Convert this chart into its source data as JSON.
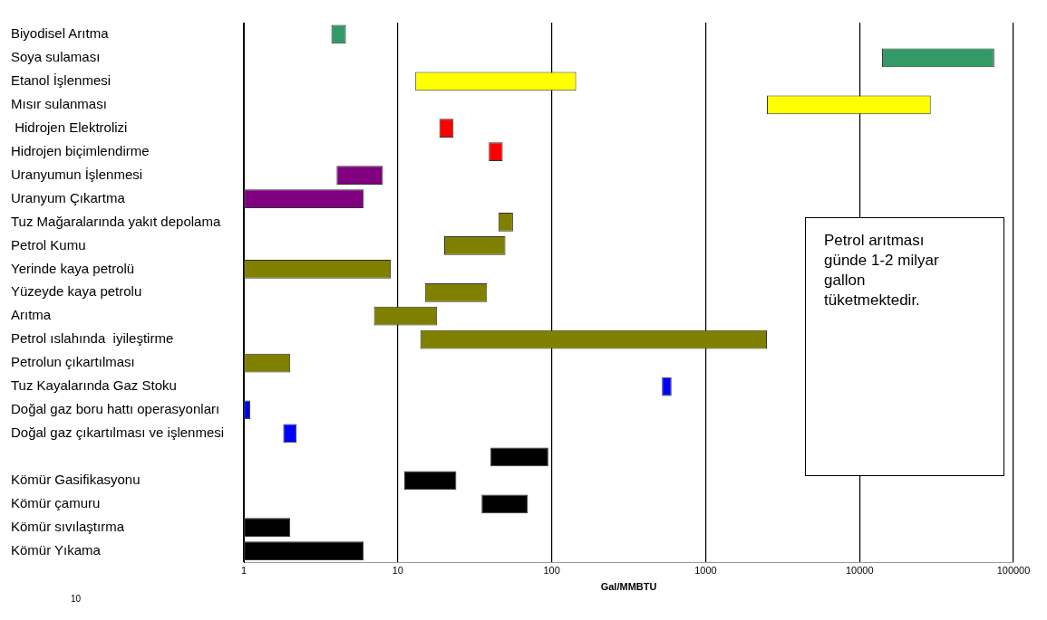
{
  "chart_data": {
    "type": "bar",
    "orientation": "horizontal",
    "log": "x",
    "xlabel": "Gal/MMBTU",
    "categories": [
      "Biyodisel Arıtma",
      "Soya sulaması",
      "Etanol İşlenmesi",
      "Mısır sulanması",
      " Hidrojen Elektrolizi",
      "Hidrojen biçimlendirme",
      "Uranyumun İşlenmesi",
      "Uranyum Çıkartma",
      "Tuz Mağaralarında yakıt depolama",
      "Petrol Kumu",
      "Yerinde kaya petrolü",
      "Yüzeyde kaya petrolu",
      "Arıtma",
      "Petrol ıslahında  iyileştirme",
      "Petrolun çıkartılması",
      "Tuz Kayalarında Gaz Stoku",
      "Doğal gaz boru hattı operasyonları",
      "Doğal gaz çıkartılması ve işlenmesi",
      null,
      "Kömür Gasifikasyonu",
      "Kömür çamuru",
      "Kömür sıvılaştırma",
      "Kömür Yıkama"
    ],
    "base": [
      3.7,
      14000,
      13,
      2500,
      18.6,
      39,
      4,
      1,
      45,
      20,
      1,
      15,
      7,
      14,
      1,
      520,
      1,
      1.8,
      40,
      11,
      35,
      1,
      1
    ],
    "values": [
      0.9,
      61000,
      131,
      26500,
      4.4,
      9,
      4,
      5,
      11,
      30,
      8,
      23,
      11,
      2486,
      1,
      80,
      0.1,
      0.4,
      55,
      13,
      35,
      1,
      5
    ],
    "colors": [
      "#339966",
      "#339966",
      "#ffff00",
      "#ffff00",
      "#ff0000",
      "#ff0000",
      "#800080",
      "#800080",
      "#808000",
      "#808000",
      "#808000",
      "#808000",
      "#808000",
      "#808000",
      "#808000",
      "#0000ff",
      "#0000ff",
      "#0000ff",
      "#000000",
      "#000000",
      "#000000",
      "#000000",
      "#000000"
    ],
    "xlim": [
      1,
      100000
    ],
    "xticks": [
      1,
      10,
      100,
      1000,
      10000,
      100000
    ],
    "grid": "x",
    "legend": false,
    "annotations": [
      "Petrol arıtması günde 1-2 milyar gallon tüketmektedir.",
      "10"
    ]
  }
}
